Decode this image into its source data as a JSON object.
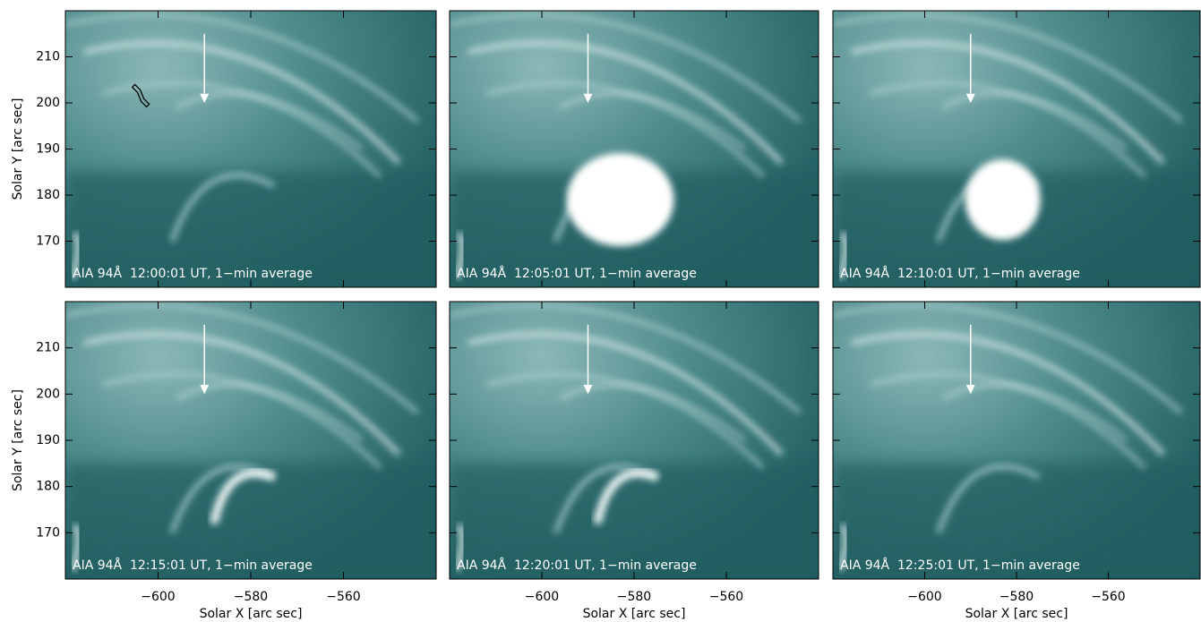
{
  "axes": {
    "xlabel": "Solar X [arc sec]",
    "ylabel": "Solar Y [arc sec]",
    "xlim": [
      -620,
      -540
    ],
    "ylim": [
      160,
      220
    ],
    "xticks": [
      {
        "value": -600,
        "label": "−600"
      },
      {
        "value": -580,
        "label": "−580"
      },
      {
        "value": -560,
        "label": "−560"
      }
    ],
    "yticks": [
      170,
      180,
      190,
      200,
      210
    ]
  },
  "panels": [
    {
      "label": "AIA 94Å  12:00:01 UT, 1−min average"
    },
    {
      "label": "AIA 94Å  12:05:01 UT, 1−min average"
    },
    {
      "label": "AIA 94Å  12:10:01 UT, 1−min average"
    },
    {
      "label": "AIA 94Å  12:15:01 UT, 1−min average"
    },
    {
      "label": "AIA 94Å  12:20:01 UT, 1−min average"
    },
    {
      "label": "AIA 94Å  12:25:01 UT, 1−min average"
    }
  ]
}
